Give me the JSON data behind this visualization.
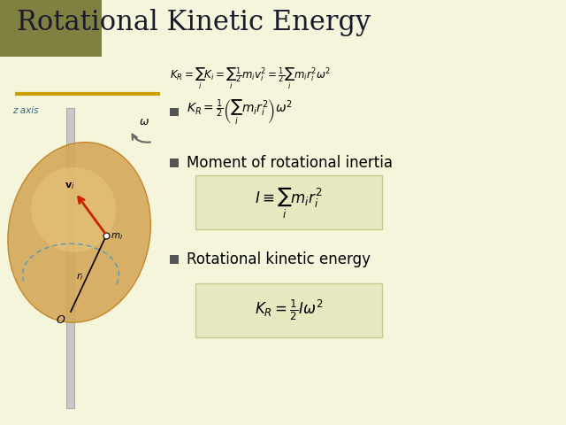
{
  "title": "Rotational Kinetic Energy",
  "background_color": "#f5f5dc",
  "title_color": "#1a1a2e",
  "title_fontsize": 22,
  "olive_rect_color": "#808040",
  "underline_color": "#c8a000",
  "bullet_color": "#555555",
  "formula_box_color": "#e8e8c0",
  "formula_box_edge": "#c8c890",
  "eq1": "$K_R = \\sum_i K_i = \\sum_i \\frac{1}{2} m_i v_i^2 = \\frac{1}{2} \\sum_i m_i r_i^2 \\omega^2$",
  "eq2": "$K_R = \\frac{1}{2}\\left(\\sum_i m_i r_i^2\\right)\\omega^2$",
  "bullet1": "Moment of rotational inertia",
  "eq3": "$I \\equiv \\sum_i m_i r_i^2$",
  "bullet2": "Rotational kinetic energy",
  "eq4": "$K_R = \\frac{1}{2} I\\omega^2$",
  "disk_color": "#d4a85a",
  "disk_edge_color": "#c08020",
  "axis_color": "#b0b0b0",
  "z_axis_label": "z axis",
  "omega_label": "$\\omega$",
  "vi_label": "$\\mathbf{v}_i$",
  "mi_label": "$m_i$",
  "ri_label": "$r_i$",
  "O_label": "$O$"
}
